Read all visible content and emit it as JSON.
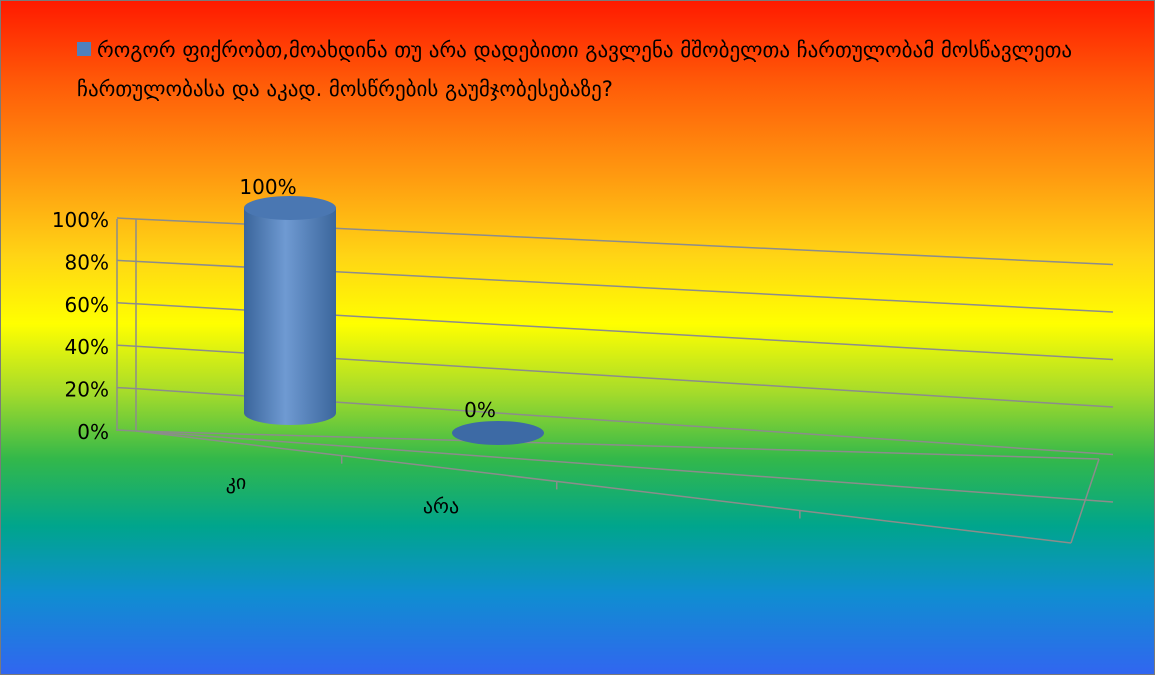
{
  "chart_data": {
    "type": "bar",
    "style": "3d-cylinder",
    "title": "",
    "series": [
      {
        "name": "როგორ ფიქრობთ,მოახდინა თუ არა დადებითი გავლენა მშობელთა ჩართულობამ მოსწავლეთა ჩართულობასა და აკად. მოსწრების გაუმჯობესებაზე?",
        "values": [
          100,
          0
        ]
      }
    ],
    "categories": [
      "კი",
      "არა"
    ],
    "data_labels": [
      "100%",
      "0%"
    ],
    "ylim": [
      0,
      100
    ],
    "yticks": [
      "0%",
      "20%",
      "40%",
      "60%",
      "80%",
      "100%"
    ],
    "grid": true,
    "legend_position": "top"
  },
  "colors": {
    "series": "#4f81bd",
    "series_dark": "#2f5a8f",
    "axis": "#8c8c8c"
  }
}
